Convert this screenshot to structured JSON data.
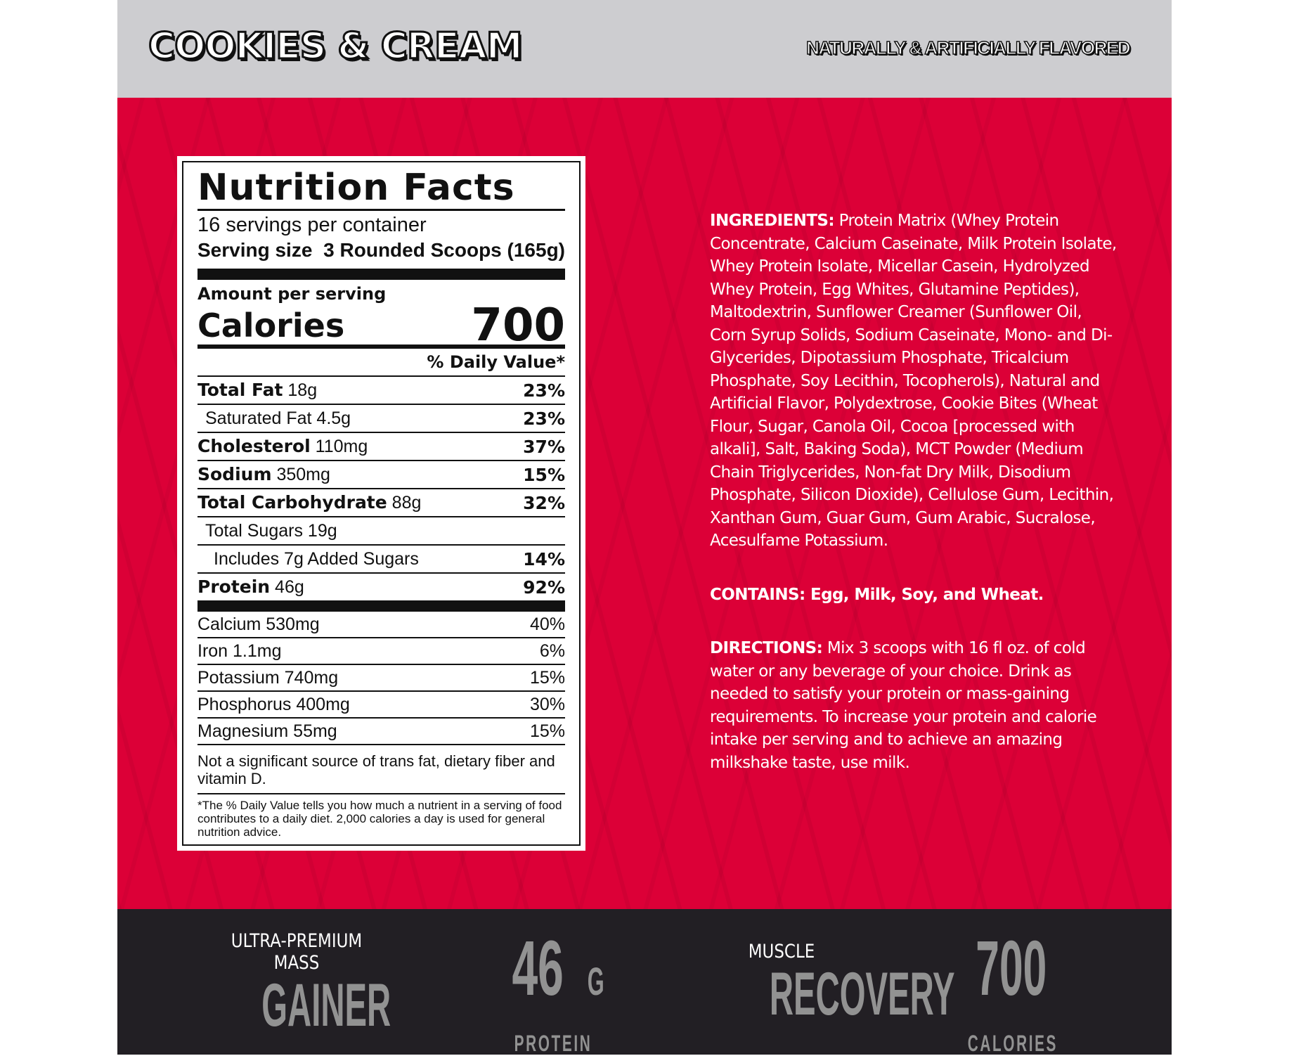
{
  "header": {
    "flavor": "COOKIES & CREAM",
    "flavor_note": "NATURALLY & ARTIFICIALLY FLAVORED"
  },
  "nutrition": {
    "title": "Nutrition Facts",
    "servings": "16 servings per container",
    "serving_size_label": "Serving size",
    "serving_size_value": "3 Rounded Scoops (165g)",
    "amount_per_serving": "Amount per serving",
    "calories_label": "Calories",
    "calories_value": "700",
    "daily_value_header": "% Daily Value*",
    "rows": [
      {
        "name": "Total Fat",
        "amount": " 18g",
        "dv": "23%",
        "bold": true
      },
      {
        "name": "Saturated Fat 4.5g",
        "amount": "",
        "dv": "23%",
        "bold": false
      },
      {
        "name": "Cholesterol",
        "amount": " 110mg",
        "dv": "37%",
        "bold": true
      },
      {
        "name": "Sodium",
        "amount": " 350mg",
        "dv": "15%",
        "bold": true
      },
      {
        "name": "Total Carbohydrate",
        "amount": " 88g",
        "dv": "32%",
        "bold": true
      },
      {
        "name": "Total Sugars 19g",
        "amount": "",
        "dv": "",
        "bold": false
      },
      {
        "name": "Includes 7g Added Sugars",
        "amount": "",
        "dv": "14%",
        "bold": false
      },
      {
        "name": "Protein",
        "amount": " 46g",
        "dv": "92%",
        "bold": true
      }
    ],
    "minerals": [
      {
        "name": "Calcium 530mg",
        "dv": "40%"
      },
      {
        "name": "Iron 1.1mg",
        "dv": "6%"
      },
      {
        "name": "Potassium 740mg",
        "dv": "15%"
      },
      {
        "name": "Phosphorus 400mg",
        "dv": "30%"
      },
      {
        "name": "Magnesium 55mg",
        "dv": "15%"
      }
    ],
    "note": "Not a significant source of trans fat, dietary fiber and vitamin D.",
    "footnote": "*The % Daily Value tells you how much a nutrient in a serving of food contributes to a daily diet. 2,000 calories a day is used for general nutrition advice."
  },
  "ingredients": {
    "label": "INGREDIENTS:",
    "text": " Protein Matrix (Whey Protein Concentrate, Calcium Caseinate, Milk Protein Isolate, Whey Protein Isolate, Micellar Casein, Hydrolyzed Whey Protein, Egg Whites, Glutamine Peptides), Maltodextrin,  Sunflower Creamer (Sunflower Oil, Corn Syrup Solids, Sodium Caseinate, Mono- and Di-Glycerides, Dipotassium Phosphate, Tricalcium Phosphate, Soy Lecithin, Tocopherols), Natural and Artificial Flavor, Polydextrose, Cookie Bites (Wheat Flour, Sugar, Canola Oil, Cocoa [processed with alkali], Salt, Baking Soda), MCT Powder (Medium Chain Triglycerides, Non-fat Dry Milk, Disodium Phosphate, Silicon Dioxide), Cellulose Gum, Lecithin, Xanthan Gum, Guar Gum, Gum Arabic, Sucralose, Acesulfame Potassium."
  },
  "contains": {
    "label": "CONTAINS:",
    "text": " Egg, Milk, Soy, and Wheat."
  },
  "directions": {
    "label": "DIRECTIONS:",
    "text": " Mix 3 scoops with 16 fl oz. of cold water or any beverage of your choice. Drink as needed to satisfy your protein or mass-gaining requirements. To increase your protein and calorie intake per serving and to achieve an amazing milkshake taste, use milk."
  },
  "badges": {
    "gainer": {
      "line1": "ULTRA-PREMIUM",
      "line2": "MASS",
      "big": "GAINER"
    },
    "protein": {
      "big": "46",
      "unit": "G",
      "sub": "PROTEIN"
    },
    "recovery": {
      "line1": "MUSCLE",
      "big": "RECOVERY"
    },
    "calories": {
      "big": "700",
      "sub": "CALORIES"
    }
  },
  "colors": {
    "red": "#dc0037",
    "gray": "#cdcdd0",
    "dark": "#221f24",
    "badge_gray": "#929292"
  }
}
